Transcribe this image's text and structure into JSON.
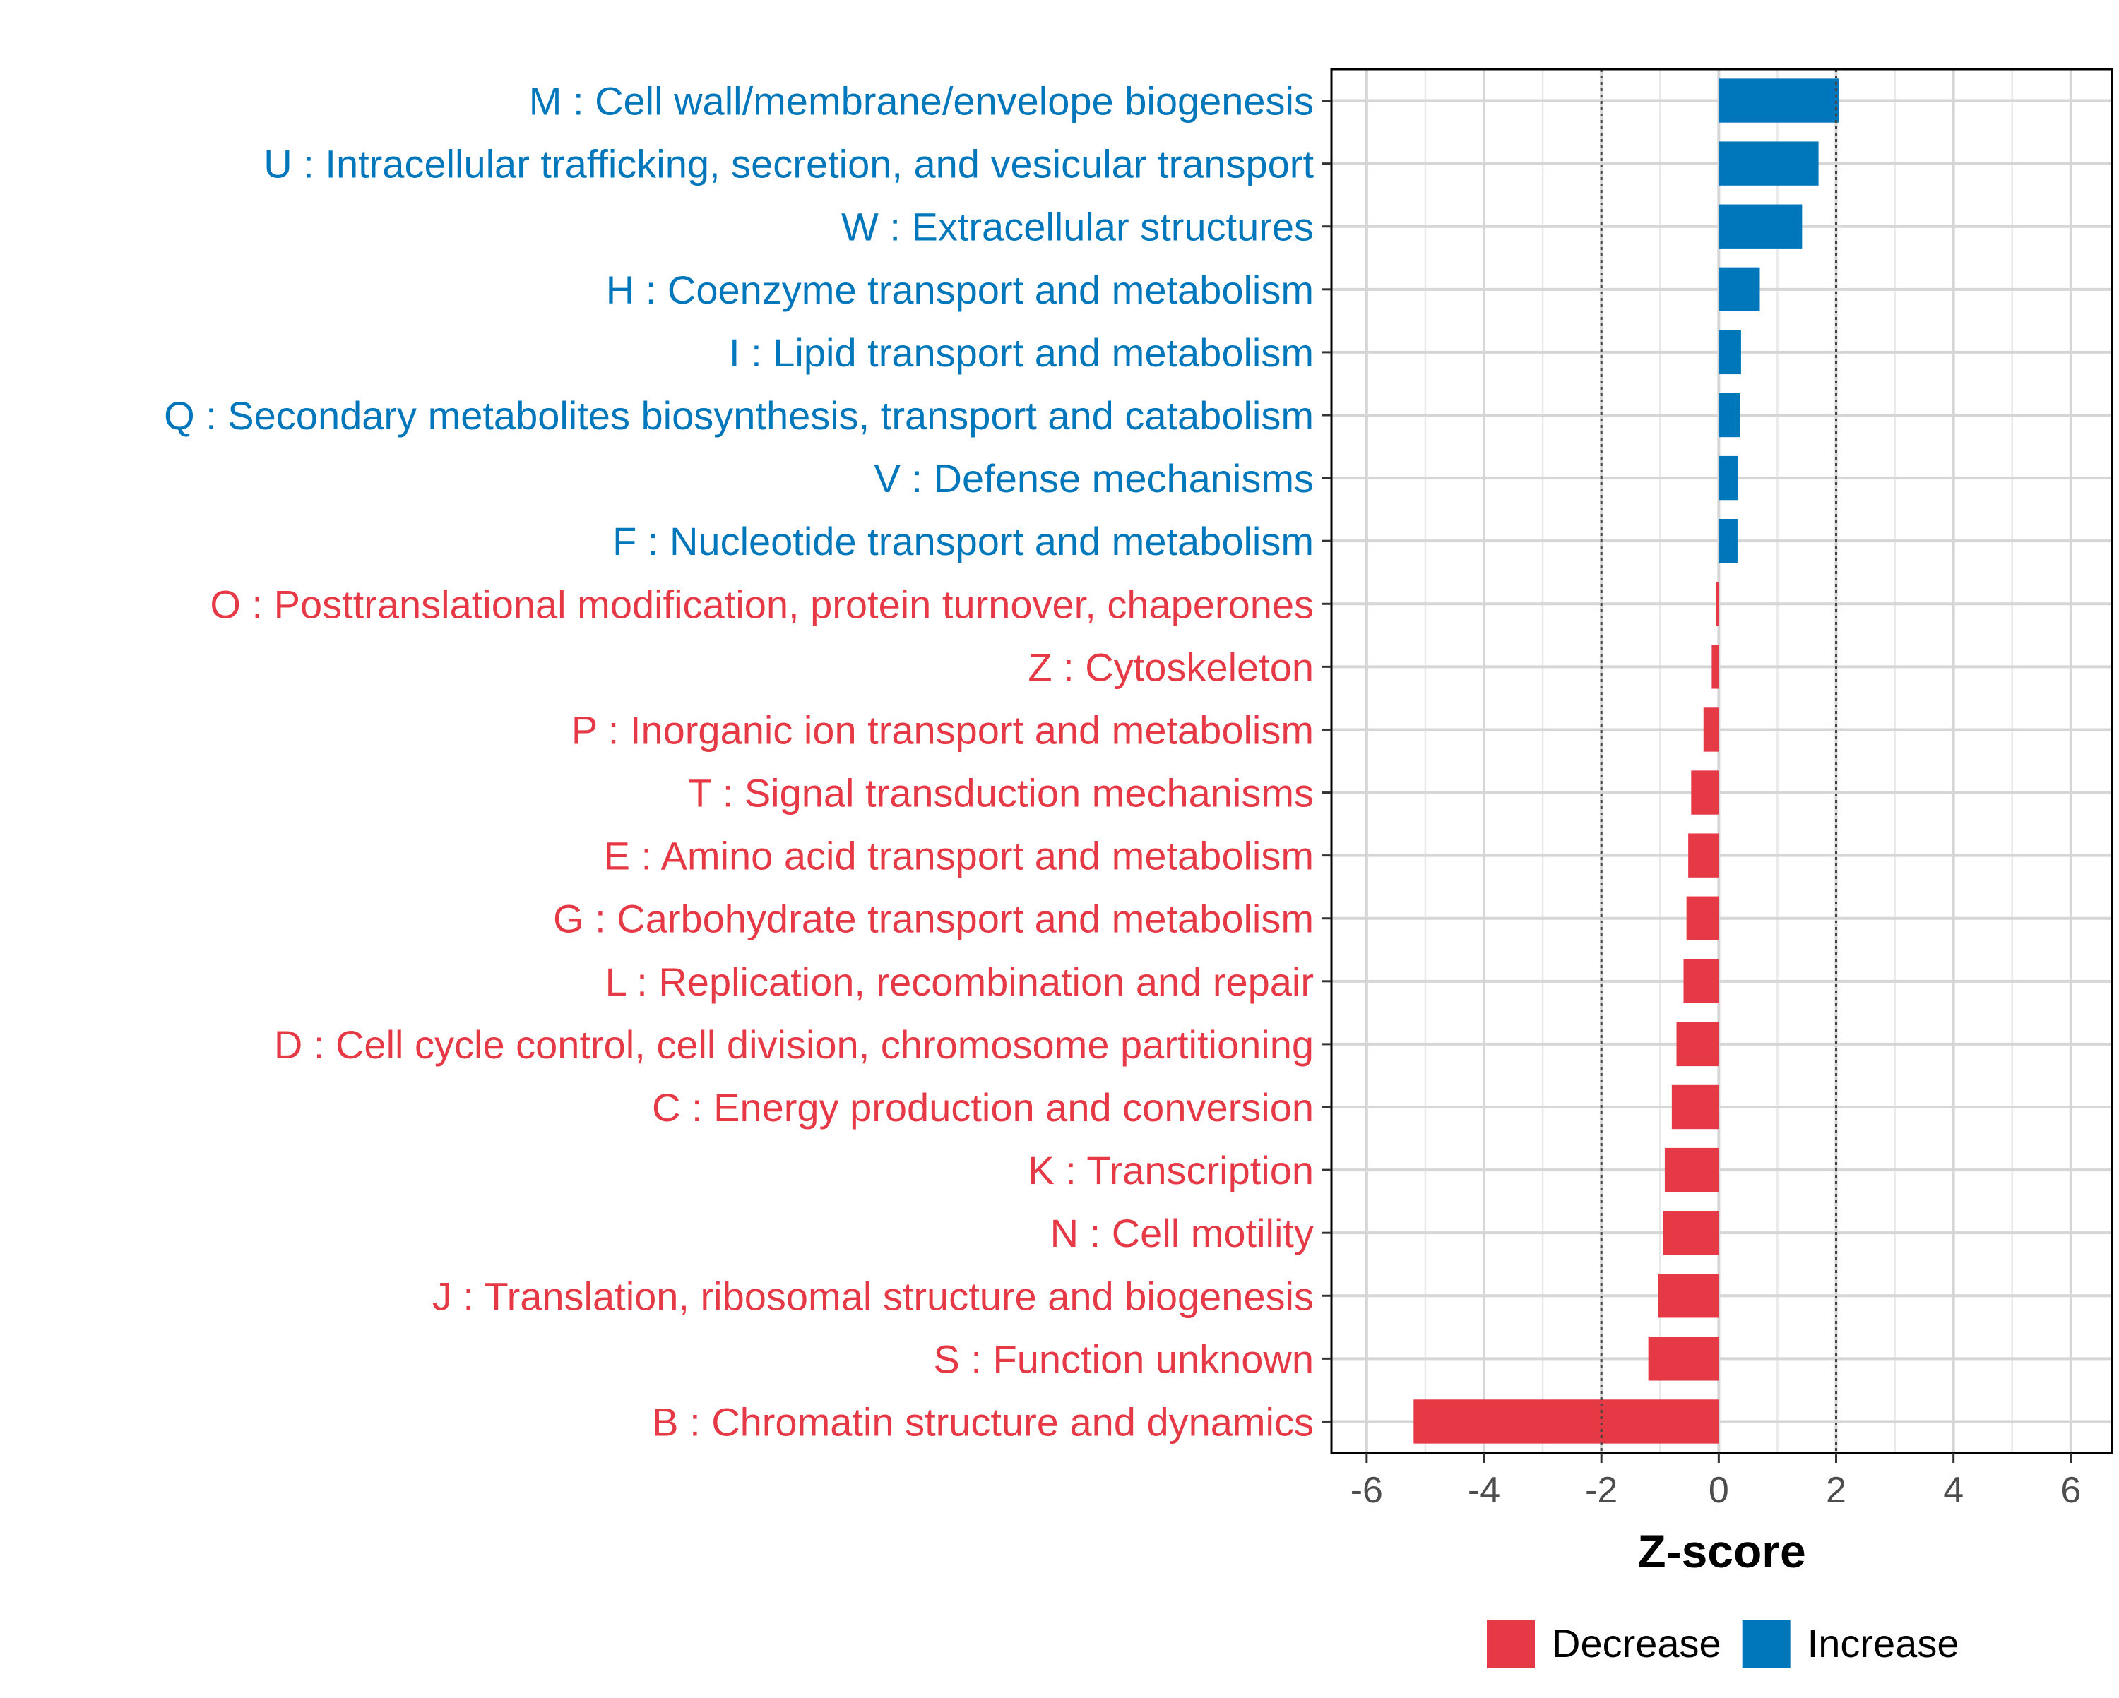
{
  "chart_data": {
    "type": "bar",
    "orientation": "horizontal",
    "xlabel": "Z-score",
    "ylabel": "",
    "xlim": [
      -6.6,
      6.7
    ],
    "xticks": [
      -6,
      -4,
      -2,
      0,
      2,
      4,
      6
    ],
    "xtick_labels": [
      "-6",
      "-4",
      "-2",
      "0",
      "2",
      "4",
      "6"
    ],
    "reference_lines": [
      -2,
      2
    ],
    "grid": true,
    "legend": {
      "placement": "bottom",
      "entries": [
        {
          "name": "Decrease",
          "color": "#e63946"
        },
        {
          "name": "Increase",
          "color": "#0077bb"
        }
      ]
    },
    "categories": [
      {
        "label": "M : Cell wall/membrane/envelope biogenesis",
        "value": 2.05,
        "group": "Increase"
      },
      {
        "label": "U : Intracellular trafficking, secretion, and vesicular transport",
        "value": 1.7,
        "group": "Increase"
      },
      {
        "label": "W : Extracellular structures",
        "value": 1.42,
        "group": "Increase"
      },
      {
        "label": "H : Coenzyme transport and metabolism",
        "value": 0.7,
        "group": "Increase"
      },
      {
        "label": "I : Lipid transport and metabolism",
        "value": 0.38,
        "group": "Increase"
      },
      {
        "label": "Q : Secondary metabolites biosynthesis, transport and catabolism",
        "value": 0.36,
        "group": "Increase"
      },
      {
        "label": "V : Defense mechanisms",
        "value": 0.33,
        "group": "Increase"
      },
      {
        "label": "F : Nucleotide transport and metabolism",
        "value": 0.32,
        "group": "Increase"
      },
      {
        "label": "O : Posttranslational modification, protein turnover, chaperones",
        "value": -0.05,
        "group": "Decrease"
      },
      {
        "label": "Z : Cytoskeleton",
        "value": -0.12,
        "group": "Decrease"
      },
      {
        "label": "P : Inorganic ion transport and metabolism",
        "value": -0.26,
        "group": "Decrease"
      },
      {
        "label": "T : Signal transduction mechanisms",
        "value": -0.47,
        "group": "Decrease"
      },
      {
        "label": "E : Amino acid transport and metabolism",
        "value": -0.52,
        "group": "Decrease"
      },
      {
        "label": "G : Carbohydrate transport and metabolism",
        "value": -0.55,
        "group": "Decrease"
      },
      {
        "label": "L : Replication, recombination and repair",
        "value": -0.6,
        "group": "Decrease"
      },
      {
        "label": "D : Cell cycle control, cell division, chromosome partitioning",
        "value": -0.72,
        "group": "Decrease"
      },
      {
        "label": "C : Energy production and conversion",
        "value": -0.8,
        "group": "Decrease"
      },
      {
        "label": "K : Transcription",
        "value": -0.92,
        "group": "Decrease"
      },
      {
        "label": "N : Cell motility",
        "value": -0.95,
        "group": "Decrease"
      },
      {
        "label": "J : Translation, ribosomal structure and biogenesis",
        "value": -1.03,
        "group": "Decrease"
      },
      {
        "label": "S : Function unknown",
        "value": -1.2,
        "group": "Decrease"
      },
      {
        "label": "B : Chromatin structure and dynamics",
        "value": -5.2,
        "group": "Decrease"
      }
    ]
  }
}
